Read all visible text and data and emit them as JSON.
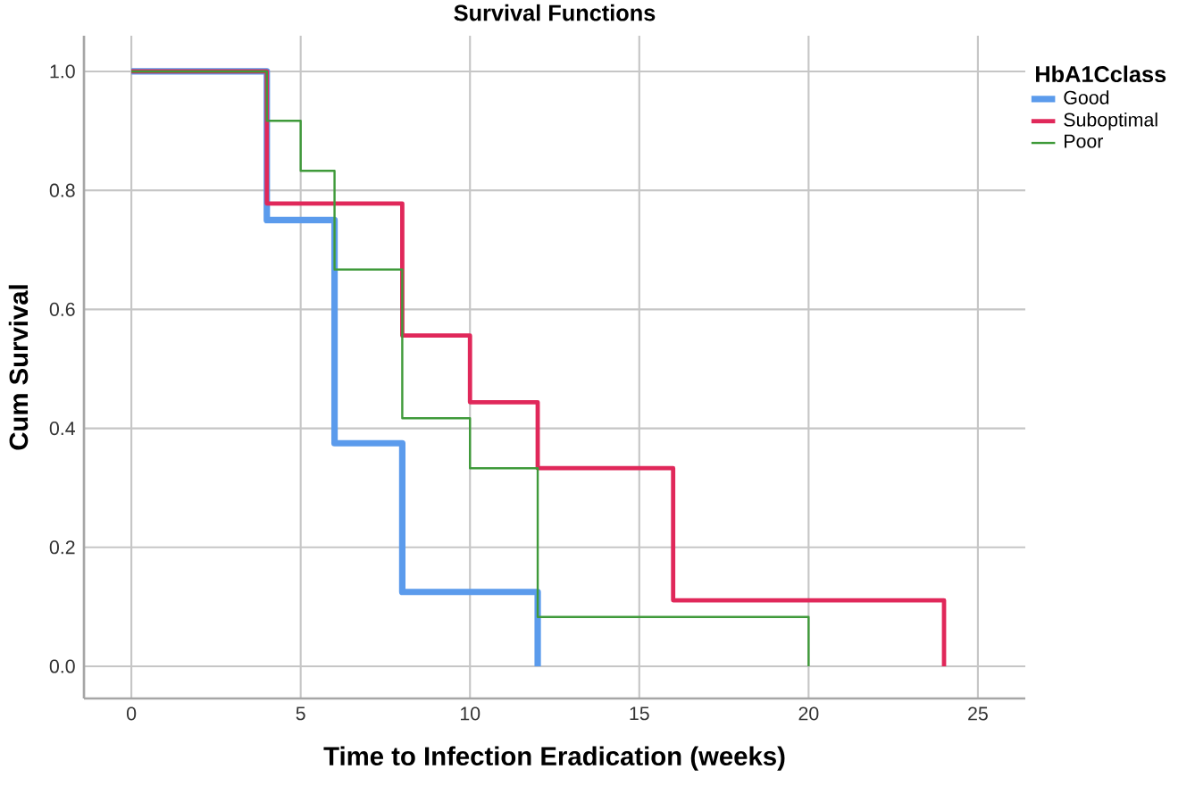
{
  "chart_data": {
    "type": "step",
    "title": "Survival Functions",
    "xlabel": "Time to Infection Eradication (weeks)",
    "ylabel": "Cum Survival",
    "legend_title": "HbA1Cclass",
    "series": [
      {
        "name": "Good",
        "color": "#5b9bec",
        "x": [
          0,
          4,
          6,
          8,
          12
        ],
        "values": [
          1,
          0.75,
          0.375,
          0.125,
          0
        ]
      },
      {
        "name": "Suboptimal",
        "color": "#e0285a",
        "x": [
          0,
          4,
          8,
          10,
          12,
          16,
          24
        ],
        "values": [
          1,
          0.778,
          0.556,
          0.444,
          0.333,
          0.111,
          0
        ]
      },
      {
        "name": "Poor",
        "color": "#3f9a3a",
        "x": [
          0,
          4,
          5,
          6,
          8,
          10,
          12,
          20
        ],
        "values": [
          1,
          0.917,
          0.833,
          0.667,
          0.417,
          0.333,
          0.083,
          0
        ]
      }
    ],
    "xlim": [
      -1.4,
      26.4
    ],
    "ylim": [
      -0.054,
      1.06
    ],
    "xticks": [
      0,
      5,
      10,
      15,
      20,
      25
    ],
    "yticks": [
      {
        "value": 0,
        "label": "0.0"
      },
      {
        "value": 0.2,
        "label": "0.2"
      },
      {
        "value": 0.4,
        "label": "0.4"
      },
      {
        "value": 0.6,
        "label": "0.6"
      },
      {
        "value": 0.8,
        "label": "0.8"
      },
      {
        "value": 1,
        "label": "1.0"
      }
    ],
    "grid": true,
    "legend": "right",
    "marker": "none",
    "line_style": "solid"
  }
}
